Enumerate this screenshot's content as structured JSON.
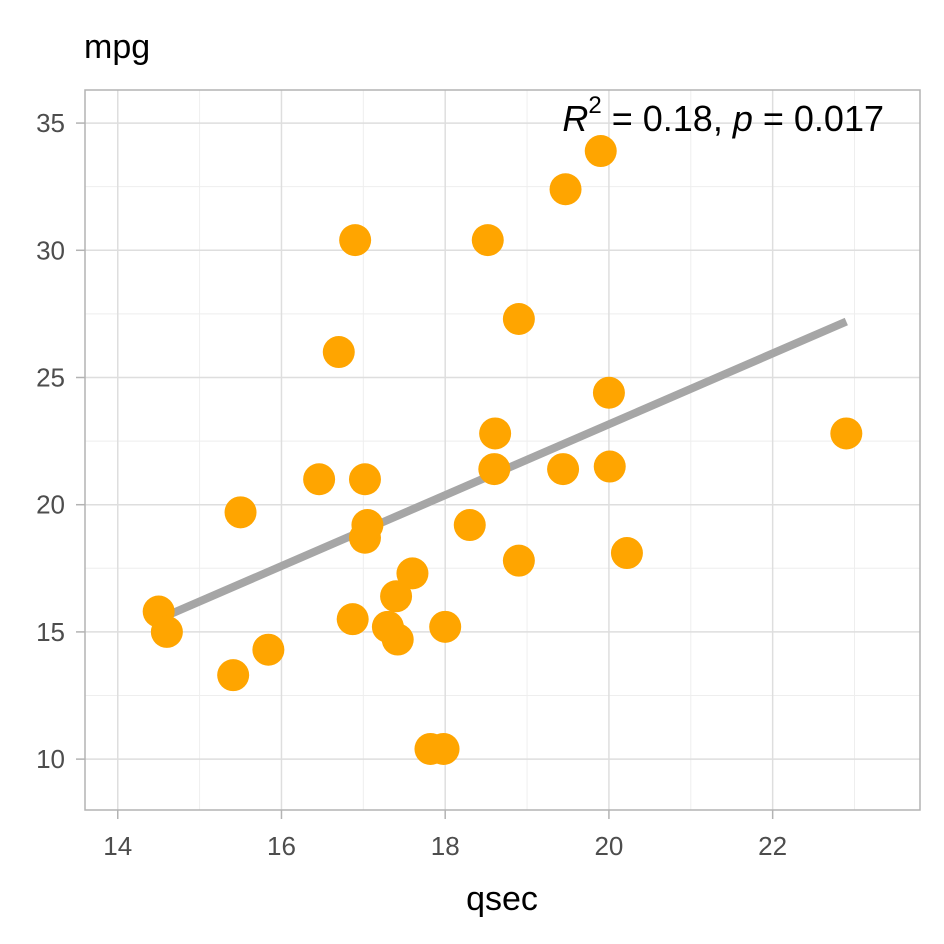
{
  "chart_data": {
    "type": "scatter",
    "title": "mpg",
    "xlabel": "qsec",
    "ylabel": "",
    "xlim": [
      13.6,
      23.8
    ],
    "ylim": [
      8.0,
      36.3
    ],
    "x_ticks": [
      14,
      16,
      18,
      20,
      22
    ],
    "y_ticks": [
      10,
      15,
      20,
      25,
      30,
      35
    ],
    "grid": true,
    "annotation": {
      "r_symbol": "R",
      "r_exponent": "2",
      "r_value": " = 0.18, ",
      "p_symbol": "p",
      "p_value": " = 0.017"
    },
    "fit_line": {
      "x": [
        14.5,
        22.9
      ],
      "y": [
        15.5,
        27.2
      ]
    },
    "points": [
      {
        "x": 16.46,
        "y": 21.0
      },
      {
        "x": 17.02,
        "y": 21.0
      },
      {
        "x": 18.61,
        "y": 22.8
      },
      {
        "x": 19.44,
        "y": 21.4
      },
      {
        "x": 17.02,
        "y": 18.7
      },
      {
        "x": 20.22,
        "y": 18.1
      },
      {
        "x": 15.84,
        "y": 14.3
      },
      {
        "x": 20.0,
        "y": 24.4
      },
      {
        "x": 22.9,
        "y": 22.8
      },
      {
        "x": 18.3,
        "y": 19.2
      },
      {
        "x": 18.9,
        "y": 17.8
      },
      {
        "x": 17.4,
        "y": 16.4
      },
      {
        "x": 17.6,
        "y": 17.3
      },
      {
        "x": 18.0,
        "y": 15.2
      },
      {
        "x": 17.98,
        "y": 10.4
      },
      {
        "x": 17.82,
        "y": 10.4
      },
      {
        "x": 17.42,
        "y": 14.7
      },
      {
        "x": 19.47,
        "y": 32.4
      },
      {
        "x": 18.52,
        "y": 30.4
      },
      {
        "x": 19.9,
        "y": 33.9
      },
      {
        "x": 20.01,
        "y": 21.5
      },
      {
        "x": 16.87,
        "y": 15.5
      },
      {
        "x": 17.3,
        "y": 15.2
      },
      {
        "x": 15.41,
        "y": 13.3
      },
      {
        "x": 17.05,
        "y": 19.2
      },
      {
        "x": 18.9,
        "y": 27.3
      },
      {
        "x": 16.7,
        "y": 26.0
      },
      {
        "x": 16.9,
        "y": 30.4
      },
      {
        "x": 14.5,
        "y": 15.8
      },
      {
        "x": 15.5,
        "y": 19.7
      },
      {
        "x": 14.6,
        "y": 15.0
      },
      {
        "x": 18.6,
        "y": 21.4
      }
    ],
    "colors": {
      "points": "#FFA500",
      "fit_line": "#A6A6A6",
      "panel_border": "#B3B3B3",
      "grid_major": "#DEDEDE",
      "grid_minor": "#EEEEEE",
      "tick_label": "#4D4D4D"
    }
  }
}
